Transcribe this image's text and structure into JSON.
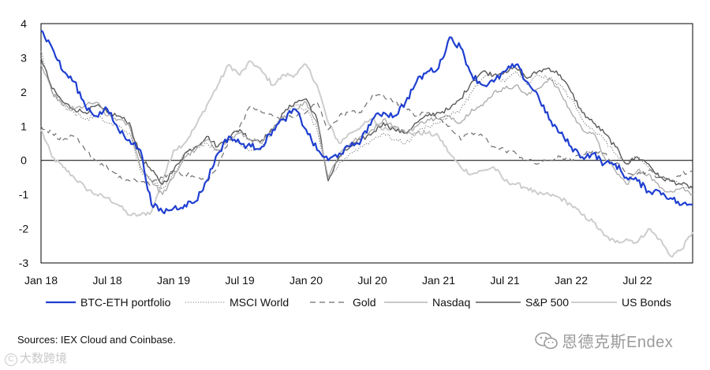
{
  "chart_data": {
    "type": "line",
    "title": "",
    "xlabel": "",
    "ylabel": "",
    "ylim": [
      -3,
      4
    ],
    "yticks": [
      -3,
      -2,
      -1,
      0,
      1,
      2,
      3,
      4
    ],
    "xlim": [
      "2018-01",
      "2022-12"
    ],
    "xticks": [
      "Jan 18",
      "Jul 18",
      "Jan 19",
      "Jul 19",
      "Jan 20",
      "Jul 20",
      "Jan 21",
      "Jul 21",
      "Jan 22",
      "Jul 22"
    ],
    "grid": false,
    "zero_line": true,
    "legend_position": "bottom",
    "series": [
      {
        "name": "BTC-ETH portfolio",
        "color": "#1f3fd0",
        "style": "solid",
        "width": 2.2,
        "x": [
          "2018-01",
          "2018-02",
          "2018-03",
          "2018-04",
          "2018-05",
          "2018-06",
          "2018-07",
          "2018-08",
          "2018-09",
          "2018-10",
          "2018-11",
          "2018-12",
          "2019-01",
          "2019-02",
          "2019-03",
          "2019-04",
          "2019-05",
          "2019-06",
          "2019-07",
          "2019-08",
          "2019-09",
          "2019-10",
          "2019-11",
          "2019-12",
          "2020-01",
          "2020-02",
          "2020-03",
          "2020-04",
          "2020-05",
          "2020-06",
          "2020-07",
          "2020-08",
          "2020-09",
          "2020-10",
          "2020-11",
          "2020-12",
          "2021-01",
          "2021-02",
          "2021-03",
          "2021-04",
          "2021-05",
          "2021-06",
          "2021-07",
          "2021-08",
          "2021-09",
          "2021-10",
          "2021-11",
          "2021-12",
          "2022-01",
          "2022-02",
          "2022-03",
          "2022-04",
          "2022-05",
          "2022-06",
          "2022-07",
          "2022-08",
          "2022-09",
          "2022-10",
          "2022-11",
          "2022-12"
        ],
        "y": [
          3.8,
          3.3,
          2.6,
          2.3,
          1.6,
          1.3,
          1.5,
          0.9,
          0.6,
          0.3,
          -1.3,
          -1.5,
          -1.4,
          -1.3,
          -1.2,
          -0.6,
          0.2,
          0.7,
          0.5,
          0.4,
          0.4,
          0.9,
          1.2,
          1.5,
          0.9,
          0.3,
          0.0,
          0.2,
          0.4,
          0.6,
          1.2,
          1.4,
          1.3,
          1.7,
          2.3,
          2.6,
          2.7,
          3.6,
          3.3,
          2.5,
          2.2,
          2.3,
          2.6,
          2.8,
          2.3,
          1.9,
          1.2,
          0.8,
          0.4,
          0.1,
          0.2,
          -0.1,
          -0.1,
          -0.5,
          -0.6,
          -0.9,
          -0.9,
          -1.1,
          -1.3,
          -1.3
        ]
      },
      {
        "name": "MSCI World",
        "color": "#7a7a7a",
        "style": "dotted",
        "width": 1.1,
        "x": [
          "2018-01",
          "2018-02",
          "2018-03",
          "2018-04",
          "2018-05",
          "2018-06",
          "2018-07",
          "2018-08",
          "2018-09",
          "2018-10",
          "2018-11",
          "2018-12",
          "2019-01",
          "2019-02",
          "2019-03",
          "2019-04",
          "2019-05",
          "2019-06",
          "2019-07",
          "2019-08",
          "2019-09",
          "2019-10",
          "2019-11",
          "2019-12",
          "2020-01",
          "2020-02",
          "2020-03",
          "2020-04",
          "2020-05",
          "2020-06",
          "2020-07",
          "2020-08",
          "2020-09",
          "2020-10",
          "2020-11",
          "2020-12",
          "2021-01",
          "2021-02",
          "2021-03",
          "2021-04",
          "2021-05",
          "2021-06",
          "2021-07",
          "2021-08",
          "2021-09",
          "2021-10",
          "2021-11",
          "2021-12",
          "2022-01",
          "2022-02",
          "2022-03",
          "2022-04",
          "2022-05",
          "2022-06",
          "2022-07",
          "2022-08",
          "2022-09",
          "2022-10",
          "2022-11",
          "2022-12"
        ],
        "y": [
          3.2,
          2.0,
          1.6,
          1.4,
          1.2,
          1.3,
          1.1,
          1.0,
          0.8,
          -0.3,
          -0.6,
          -0.8,
          -0.4,
          0.2,
          0.4,
          0.5,
          0.3,
          0.6,
          0.5,
          0.3,
          0.4,
          0.9,
          1.3,
          1.6,
          1.5,
          0.9,
          -0.6,
          -0.1,
          0.2,
          0.4,
          0.6,
          0.8,
          0.6,
          0.5,
          0.8,
          1.0,
          1.1,
          1.3,
          1.5,
          2.0,
          2.4,
          2.5,
          2.3,
          2.6,
          2.2,
          2.5,
          2.4,
          2.2,
          1.8,
          1.2,
          0.9,
          0.6,
          0.2,
          -0.1,
          0.1,
          -0.2,
          -0.5,
          -0.6,
          -0.7,
          -0.8
        ]
      },
      {
        "name": "Gold",
        "color": "#6e6e6e",
        "style": "dashed",
        "width": 1.2,
        "x": [
          "2018-01",
          "2018-02",
          "2018-03",
          "2018-04",
          "2018-05",
          "2018-06",
          "2018-07",
          "2018-08",
          "2018-09",
          "2018-10",
          "2018-11",
          "2018-12",
          "2019-01",
          "2019-02",
          "2019-03",
          "2019-04",
          "2019-05",
          "2019-06",
          "2019-07",
          "2019-08",
          "2019-09",
          "2019-10",
          "2019-11",
          "2019-12",
          "2020-01",
          "2020-02",
          "2020-03",
          "2020-04",
          "2020-05",
          "2020-06",
          "2020-07",
          "2020-08",
          "2020-09",
          "2020-10",
          "2020-11",
          "2020-12",
          "2021-01",
          "2021-02",
          "2021-03",
          "2021-04",
          "2021-05",
          "2021-06",
          "2021-07",
          "2021-08",
          "2021-09",
          "2021-10",
          "2021-11",
          "2021-12",
          "2022-01",
          "2022-02",
          "2022-03",
          "2022-04",
          "2022-05",
          "2022-06",
          "2022-07",
          "2022-08",
          "2022-09",
          "2022-10",
          "2022-11",
          "2022-12"
        ],
        "y": [
          1.0,
          0.8,
          0.6,
          0.7,
          0.3,
          0.0,
          -0.2,
          -0.5,
          -0.6,
          -0.6,
          -0.7,
          -0.5,
          -0.3,
          -0.4,
          -0.5,
          -0.6,
          -0.2,
          0.6,
          1.0,
          1.6,
          1.4,
          1.3,
          1.2,
          1.3,
          1.4,
          1.7,
          0.9,
          1.3,
          1.4,
          1.4,
          1.9,
          1.9,
          1.7,
          1.6,
          1.3,
          1.4,
          1.2,
          1.0,
          0.6,
          0.8,
          0.7,
          0.4,
          0.3,
          0.2,
          0.0,
          -0.1,
          0.0,
          0.1,
          0.0,
          0.2,
          0.3,
          0.2,
          -0.1,
          -0.3,
          -0.4,
          -0.3,
          -0.5,
          -0.6,
          -0.4,
          -0.3
        ]
      },
      {
        "name": "Nasdaq",
        "color": "#a9a9a9",
        "style": "solid",
        "width": 1.3,
        "x": [
          "2018-01",
          "2018-02",
          "2018-03",
          "2018-04",
          "2018-05",
          "2018-06",
          "2018-07",
          "2018-08",
          "2018-09",
          "2018-10",
          "2018-11",
          "2018-12",
          "2019-01",
          "2019-02",
          "2019-03",
          "2019-04",
          "2019-05",
          "2019-06",
          "2019-07",
          "2019-08",
          "2019-09",
          "2019-10",
          "2019-11",
          "2019-12",
          "2020-01",
          "2020-02",
          "2020-03",
          "2020-04",
          "2020-05",
          "2020-06",
          "2020-07",
          "2020-08",
          "2020-09",
          "2020-10",
          "2020-11",
          "2020-12",
          "2021-01",
          "2021-02",
          "2021-03",
          "2021-04",
          "2021-05",
          "2021-06",
          "2021-07",
          "2021-08",
          "2021-09",
          "2021-10",
          "2021-11",
          "2021-12",
          "2022-01",
          "2022-02",
          "2022-03",
          "2022-04",
          "2022-05",
          "2022-06",
          "2022-07",
          "2022-08",
          "2022-09",
          "2022-10",
          "2022-11",
          "2022-12"
        ],
        "y": [
          2.8,
          2.0,
          1.6,
          1.5,
          1.6,
          1.7,
          1.3,
          1.2,
          1.0,
          -0.2,
          -0.6,
          -1.0,
          -0.5,
          0.1,
          0.3,
          0.6,
          0.3,
          0.6,
          0.8,
          0.6,
          0.5,
          0.9,
          1.3,
          1.5,
          1.7,
          1.1,
          -0.5,
          0.2,
          0.5,
          0.7,
          0.9,
          1.2,
          1.0,
          0.8,
          1.0,
          1.2,
          1.2,
          1.3,
          1.1,
          1.5,
          1.6,
          2.0,
          2.1,
          2.2,
          1.9,
          2.1,
          2.4,
          2.0,
          1.4,
          0.9,
          0.8,
          0.1,
          -0.3,
          -0.7,
          -0.3,
          -0.4,
          -0.8,
          -0.9,
          -0.8,
          -1.0
        ]
      },
      {
        "name": "S&P 500",
        "color": "#595959",
        "style": "solid",
        "width": 1.4,
        "x": [
          "2018-01",
          "2018-02",
          "2018-03",
          "2018-04",
          "2018-05",
          "2018-06",
          "2018-07",
          "2018-08",
          "2018-09",
          "2018-10",
          "2018-11",
          "2018-12",
          "2019-01",
          "2019-02",
          "2019-03",
          "2019-04",
          "2019-05",
          "2019-06",
          "2019-07",
          "2019-08",
          "2019-09",
          "2019-10",
          "2019-11",
          "2019-12",
          "2020-01",
          "2020-02",
          "2020-03",
          "2020-04",
          "2020-05",
          "2020-06",
          "2020-07",
          "2020-08",
          "2020-09",
          "2020-10",
          "2020-11",
          "2020-12",
          "2021-01",
          "2021-02",
          "2021-03",
          "2021-04",
          "2021-05",
          "2021-06",
          "2021-07",
          "2021-08",
          "2021-09",
          "2021-10",
          "2021-11",
          "2021-12",
          "2022-01",
          "2022-02",
          "2022-03",
          "2022-04",
          "2022-05",
          "2022-06",
          "2022-07",
          "2022-08",
          "2022-09",
          "2022-10",
          "2022-11",
          "2022-12"
        ],
        "y": [
          3.0,
          2.1,
          1.7,
          1.5,
          1.4,
          1.6,
          1.4,
          1.3,
          1.1,
          0.1,
          -0.3,
          -0.7,
          -0.3,
          0.2,
          0.4,
          0.7,
          0.4,
          0.7,
          0.9,
          0.6,
          0.6,
          0.9,
          1.4,
          1.7,
          1.8,
          1.2,
          -0.6,
          0.1,
          0.4,
          0.6,
          0.8,
          1.1,
          0.9,
          0.8,
          1.1,
          1.3,
          1.4,
          1.5,
          1.8,
          2.3,
          2.6,
          2.5,
          2.6,
          2.7,
          2.4,
          2.6,
          2.7,
          2.5,
          2.0,
          1.4,
          1.1,
          0.8,
          0.4,
          -0.1,
          0.1,
          -0.1,
          -0.5,
          -0.6,
          -0.7,
          -0.8
        ]
      },
      {
        "name": "US Bonds",
        "color": "#cdcdcd",
        "style": "solid",
        "width": 2.0,
        "x": [
          "2018-01",
          "2018-02",
          "2018-03",
          "2018-04",
          "2018-05",
          "2018-06",
          "2018-07",
          "2018-08",
          "2018-09",
          "2018-10",
          "2018-11",
          "2018-12",
          "2019-01",
          "2019-02",
          "2019-03",
          "2019-04",
          "2019-05",
          "2019-06",
          "2019-07",
          "2019-08",
          "2019-09",
          "2019-10",
          "2019-11",
          "2019-12",
          "2020-01",
          "2020-02",
          "2020-03",
          "2020-04",
          "2020-05",
          "2020-06",
          "2020-07",
          "2020-08",
          "2020-09",
          "2020-10",
          "2020-11",
          "2020-12",
          "2021-01",
          "2021-02",
          "2021-03",
          "2021-04",
          "2021-05",
          "2021-06",
          "2021-07",
          "2021-08",
          "2021-09",
          "2021-10",
          "2021-11",
          "2021-12",
          "2022-01",
          "2022-02",
          "2022-03",
          "2022-04",
          "2022-05",
          "2022-06",
          "2022-07",
          "2022-08",
          "2022-09",
          "2022-10",
          "2022-11",
          "2022-12"
        ],
        "y": [
          0.9,
          0.1,
          -0.2,
          -0.5,
          -0.8,
          -1.0,
          -1.1,
          -1.3,
          -1.6,
          -1.6,
          -1.5,
          -0.6,
          0.3,
          0.5,
          1.0,
          1.6,
          2.2,
          2.8,
          2.5,
          2.9,
          2.6,
          2.2,
          2.5,
          2.5,
          2.8,
          2.2,
          1.1,
          0.5,
          0.8,
          1.0,
          1.2,
          0.9,
          1.0,
          0.8,
          0.8,
          0.8,
          0.7,
          0.2,
          -0.2,
          -0.4,
          -0.3,
          -0.2,
          -0.6,
          -0.7,
          -0.8,
          -1.0,
          -1.0,
          -1.1,
          -1.3,
          -1.6,
          -1.8,
          -2.2,
          -2.4,
          -2.3,
          -2.4,
          -2.0,
          -2.3,
          -2.8,
          -2.6,
          -2.1
        ]
      }
    ]
  },
  "footer": {
    "source": "Sources: IEX Cloud and Coinbase.",
    "brand": "恩德克斯Endex",
    "watermark": "大数跨境",
    "watermark_symbol": "C"
  }
}
